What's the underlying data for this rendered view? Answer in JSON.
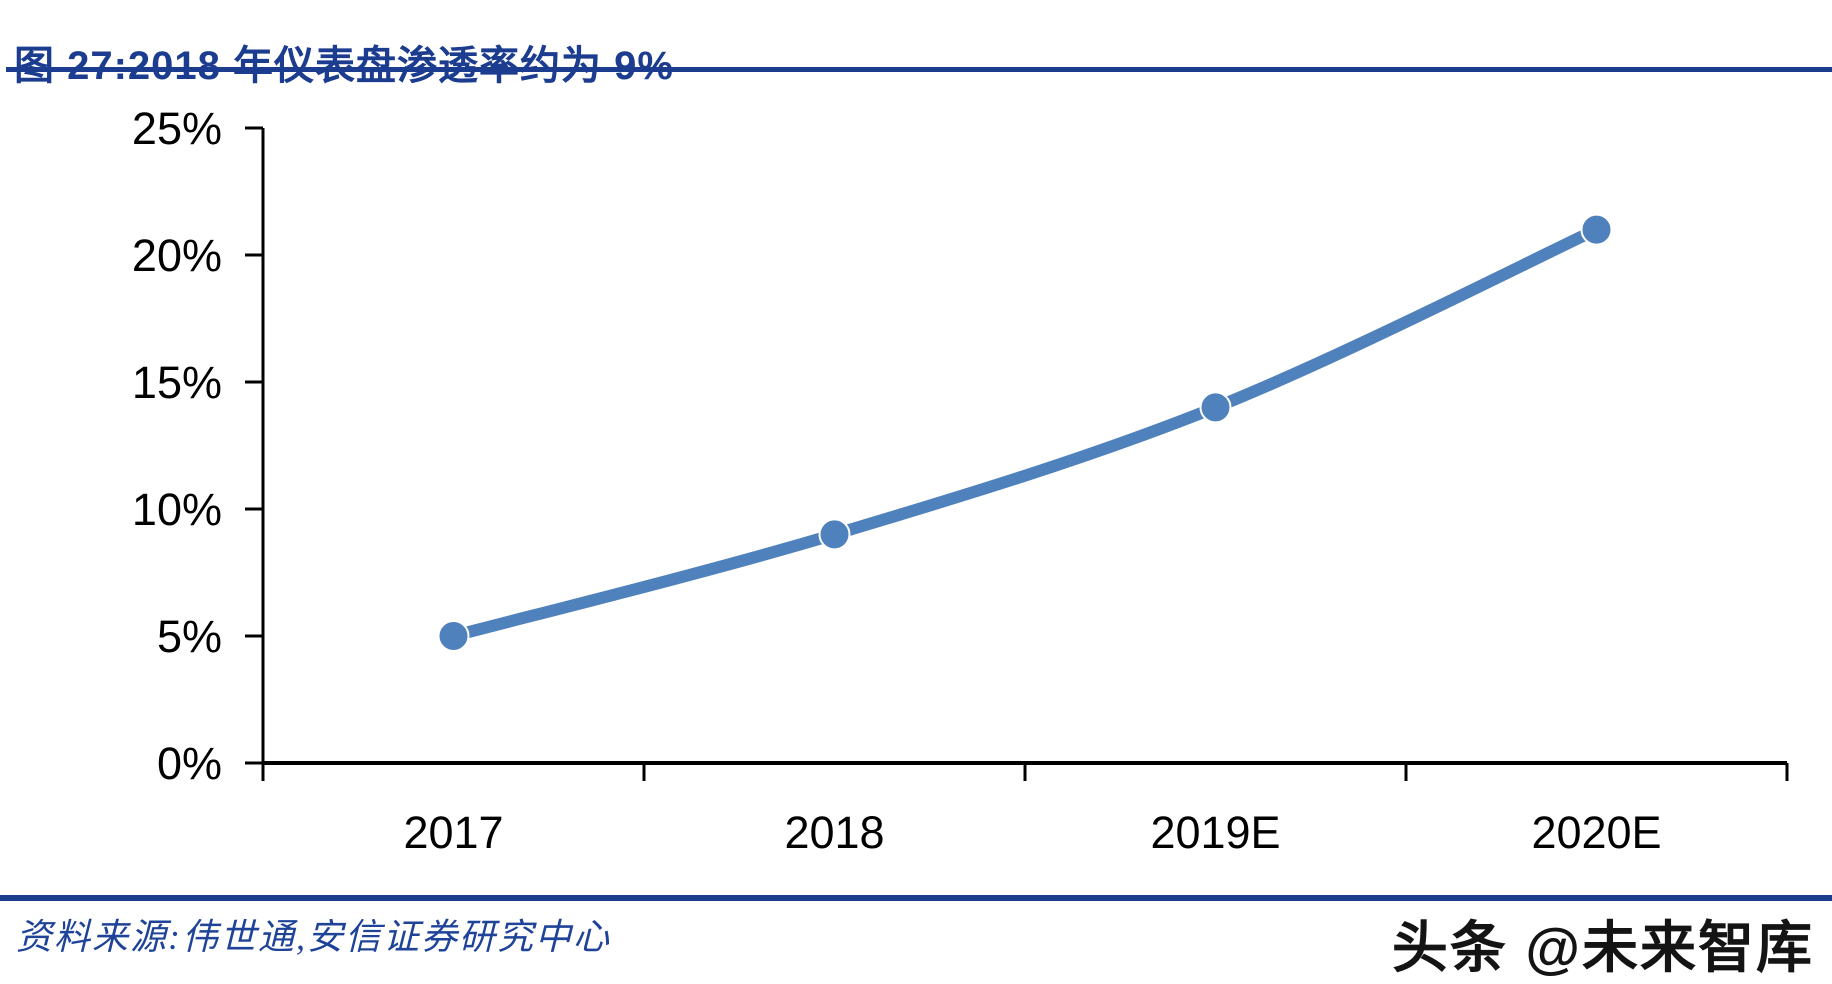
{
  "header": {
    "title": "图 27:2018 年仪表盘渗透率约为 9%"
  },
  "footer": {
    "source": "资料来源:伟世通,安信证券研究中心",
    "watermark": "头条 @未来智库"
  },
  "colors": {
    "title_blue": "#1B3C8F",
    "rule_blue": "#1B3C8F",
    "series_blue": "#4F81BD",
    "source_blue": "#1E4398",
    "axis_color": "#000000",
    "tick_label_color": "#000000"
  },
  "chart_data": {
    "type": "line",
    "title": "图 27:2018 年仪表盘渗透率约为 9%",
    "categories": [
      "2017",
      "2018",
      "2019E",
      "2020E"
    ],
    "values": [
      5,
      9,
      14,
      21
    ],
    "xlabel": "",
    "ylabel": "",
    "ylim": [
      0,
      25
    ],
    "yticks": [
      0,
      5,
      10,
      15,
      20,
      25
    ],
    "ytick_labels": [
      "0%",
      "5%",
      "10%",
      "15%",
      "20%",
      "25%"
    ],
    "grid": false,
    "legend": "none",
    "marker": "circle",
    "line_smooth": true
  }
}
